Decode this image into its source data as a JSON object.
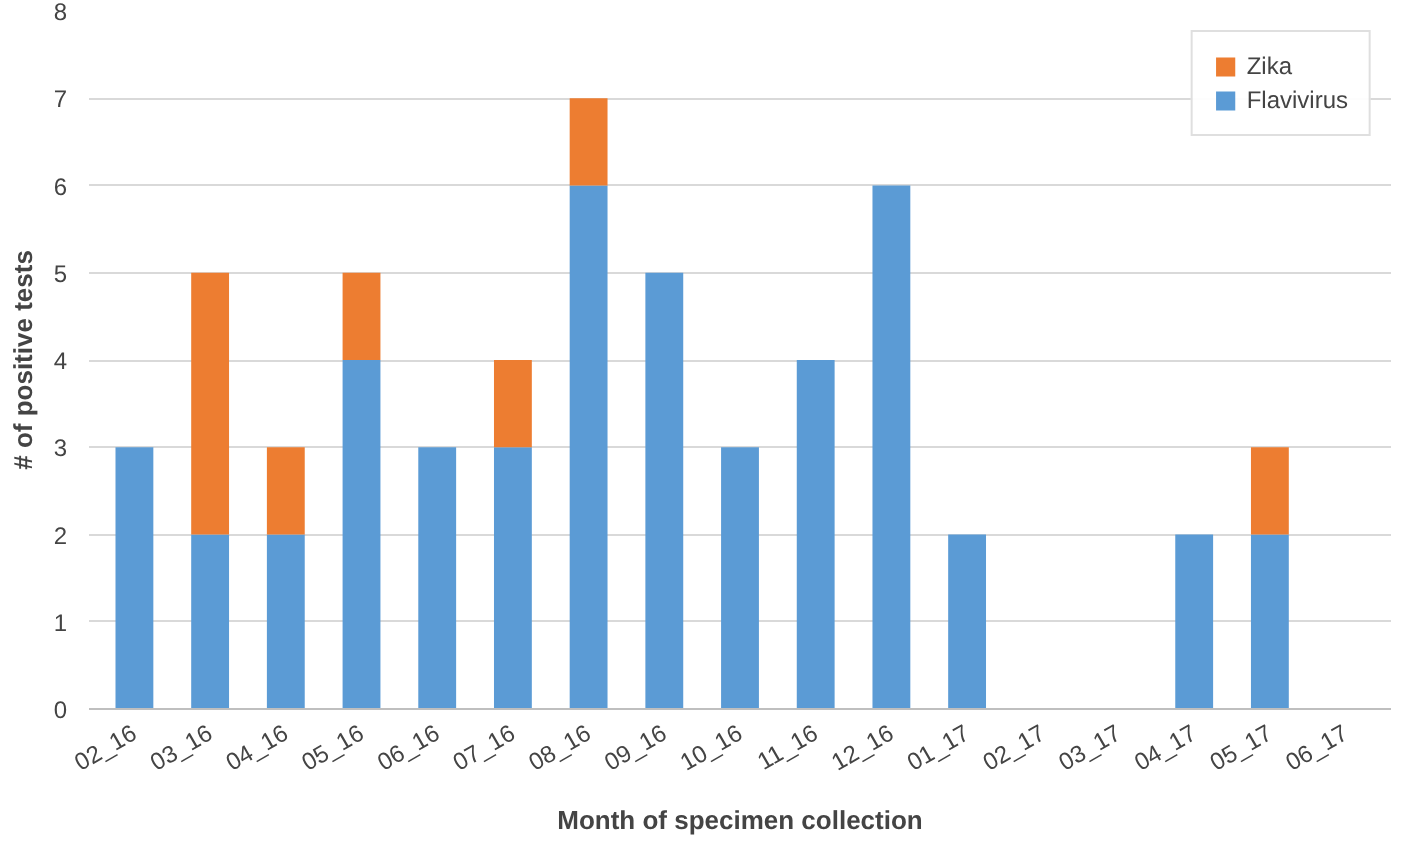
{
  "chart_data": {
    "type": "bar",
    "stacked": true,
    "xlabel": "Month of specimen collection",
    "ylabel": "# of positive tests",
    "categories": [
      "02_16",
      "03_16",
      "04_16",
      "05_16",
      "06_16",
      "07_16",
      "08_16",
      "09_16",
      "10_16",
      "11_16",
      "12_16",
      "01_17",
      "02_17",
      "03_17",
      "04_17",
      "05_17",
      "06_17"
    ],
    "series": [
      {
        "name": "Flavivirus",
        "color": "#5b9bd5",
        "values": [
          3,
          2,
          2,
          4,
          3,
          3,
          6,
          5,
          3,
          4,
          6,
          2,
          0,
          0,
          2,
          2,
          0
        ]
      },
      {
        "name": "Zika",
        "color": "#ed7d31",
        "values": [
          0,
          3,
          1,
          1,
          0,
          1,
          1,
          0,
          0,
          0,
          0,
          0,
          0,
          0,
          0,
          1,
          0
        ]
      }
    ],
    "ylim": [
      0,
      8
    ],
    "yticks": [
      0,
      1,
      2,
      3,
      4,
      5,
      6,
      7,
      8
    ],
    "grid": "y",
    "legend": "top right"
  }
}
